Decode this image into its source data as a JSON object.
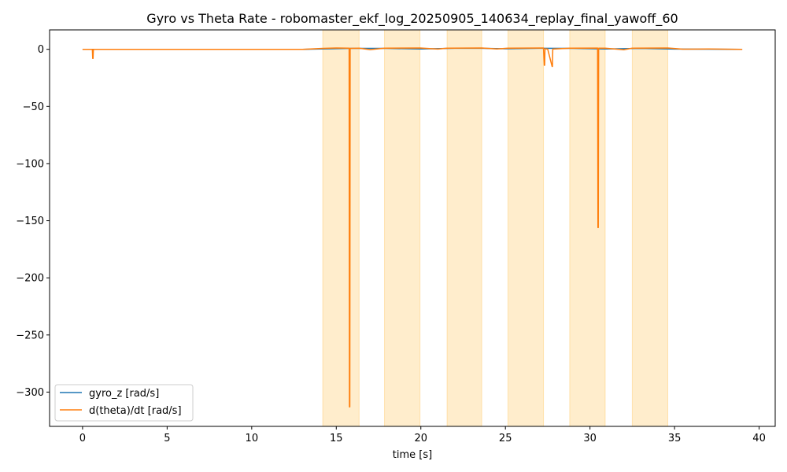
{
  "chart_data": {
    "type": "line",
    "title": "Gyro vs Theta Rate - robomaster_ekf_log_20250905_140634_replay_final_yawoff_60",
    "xlabel": "time [s]",
    "ylabel": "",
    "xlim": [
      -1.95,
      40.95
    ],
    "ylim": [
      -330,
      17
    ],
    "xticks": [
      0,
      5,
      10,
      15,
      20,
      25,
      30,
      35,
      40
    ],
    "yticks": [
      0,
      -50,
      -100,
      -150,
      -200,
      -250,
      -300
    ],
    "ytick_labels": [
      "0",
      "−50",
      "−100",
      "−150",
      "−200",
      "−250",
      "−300"
    ],
    "grid": false,
    "legend_position": "lower-left",
    "shaded_regions": [
      {
        "start": 14.2,
        "end": 16.35
      },
      {
        "start": 17.85,
        "end": 19.95
      },
      {
        "start": 21.55,
        "end": 23.6
      },
      {
        "start": 25.15,
        "end": 27.25
      },
      {
        "start": 28.8,
        "end": 30.9
      },
      {
        "start": 32.5,
        "end": 34.6
      }
    ],
    "series": [
      {
        "name": "gyro_z [rad/s]",
        "color": "#1f77b4",
        "x": [
          0,
          13,
          15.8,
          18,
          20,
          22,
          23.5,
          25,
          27,
          29,
          31,
          33,
          35,
          39
        ],
        "y": [
          0,
          0,
          0.8,
          0.8,
          0.3,
          0.9,
          0.9,
          0.5,
          0.9,
          0.8,
          0.3,
          0.8,
          0.2,
          0
        ]
      },
      {
        "name": "d(theta)/dt [rad/s]",
        "color": "#ff7f0e",
        "x": [
          0,
          0.58,
          0.6,
          0.62,
          0.64,
          13,
          14.2,
          15.0,
          15.76,
          15.78,
          15.8,
          15.82,
          16.35,
          17.0,
          17.85,
          19.95,
          21.0,
          21.55,
          23.6,
          24.5,
          25.15,
          27.25,
          27.3,
          27.32,
          27.34,
          27.5,
          27.76,
          27.78,
          27.8,
          28.8,
          30.45,
          30.47,
          30.49,
          30.51,
          30.9,
          32.0,
          32.5,
          34.6,
          35.5,
          37.0,
          39.0
        ],
        "y": [
          0,
          0,
          -8,
          -8,
          0,
          0,
          0.8,
          1.2,
          1.0,
          -313,
          -313,
          0.8,
          1.0,
          -0.3,
          1.0,
          1.2,
          0.2,
          1.0,
          1.2,
          0.3,
          1.0,
          1.2,
          -14,
          -14,
          0.5,
          0.2,
          -15,
          -15,
          0.2,
          1.0,
          1.1,
          -156,
          -156,
          1.0,
          1.0,
          -0.4,
          1.0,
          1.2,
          0.1,
          0.3,
          0
        ]
      }
    ]
  }
}
